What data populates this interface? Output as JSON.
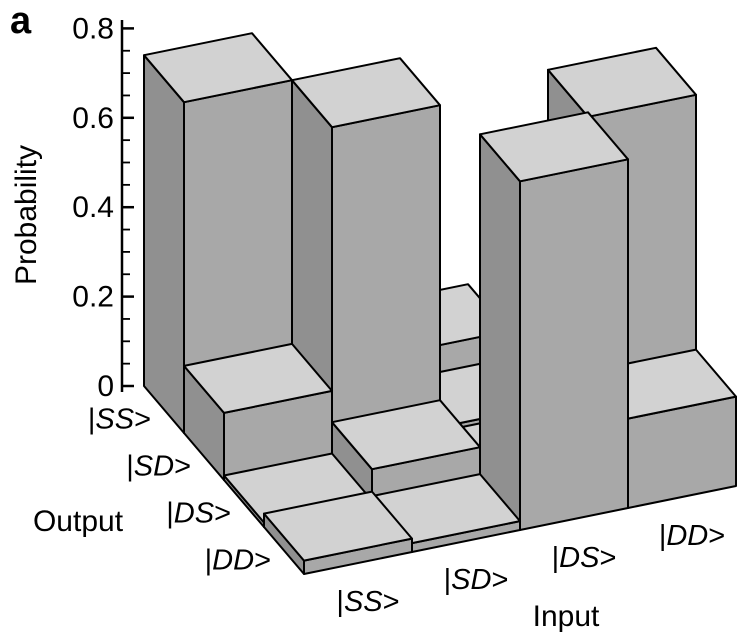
{
  "panel_label": "a",
  "chart_data": {
    "type": "bar3d",
    "zlabel": "Probability",
    "xlabel": "Input",
    "depth_label": "Output",
    "input_labels": [
      "|SS>",
      "|SD>",
      "|DS>",
      "|DD>"
    ],
    "output_labels": [
      "|SS>",
      "|SD>",
      "|DS>",
      "|DD>"
    ],
    "zlim": [
      0,
      0.8
    ],
    "ztick_values": [
      0,
      0.2,
      0.4,
      0.6,
      0.8
    ],
    "ztick_labels": [
      "0",
      "0.2",
      "0.4",
      "0.6",
      "0.8"
    ],
    "ztick_minor_step": 0.05,
    "grid": false,
    "legend": "none",
    "probabilities": {
      "rows_axis": "input",
      "cols_axis": "output",
      "rows": [
        "|SS>",
        "|SD>",
        "|DS>",
        "|DD>"
      ],
      "cols": [
        "|SS>",
        "|SD>",
        "|DS>",
        "|DD>"
      ],
      "values": [
        [
          0.74,
          0.15,
          0.01,
          0.03
        ],
        [
          0.02,
          0.74,
          0.08,
          0.02
        ],
        [
          0.08,
          0.02,
          0.01,
          0.78
        ],
        [
          0.01,
          0.02,
          0.77,
          0.2
        ]
      ]
    },
    "colors": {
      "top_face": "#d2d2d2",
      "front_face": "#a8a8a8",
      "side_face": "#909090",
      "outline": "#000000",
      "background": "#ffffff",
      "text": "#000000"
    }
  }
}
